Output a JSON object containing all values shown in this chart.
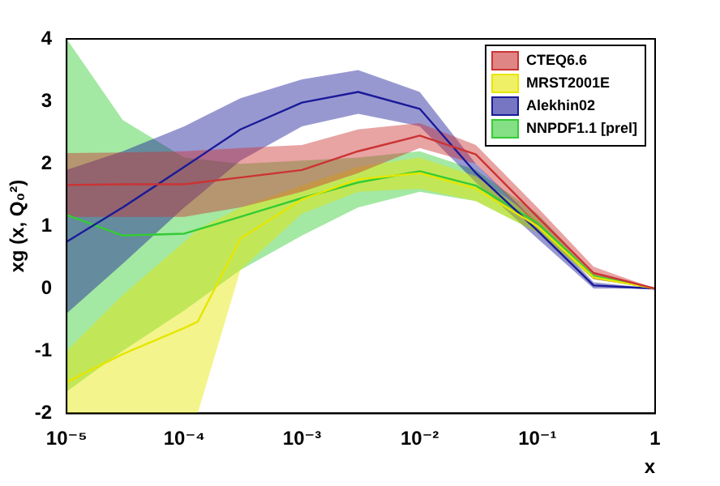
{
  "chart_data": {
    "type": "line",
    "xlabel": "x",
    "ylabel": "xg (x, Q₀²)",
    "log": "x",
    "xlim": [
      1e-05,
      1
    ],
    "ylim": [
      -2,
      4
    ],
    "xticks": [
      {
        "value": 1e-05,
        "label": "10⁻⁵"
      },
      {
        "value": 0.0001,
        "label": "10⁻⁴"
      },
      {
        "value": 0.001,
        "label": "10⁻³"
      },
      {
        "value": 0.01,
        "label": "10⁻²"
      },
      {
        "value": 0.1,
        "label": "10⁻¹"
      },
      1
    ],
    "yticks": [
      -2,
      -1,
      0,
      1,
      2,
      3,
      4
    ],
    "grid": false,
    "legend": "top right",
    "x": [
      1e-05,
      3e-05,
      0.0001,
      0.0003,
      0.001,
      0.003,
      0.01,
      0.03,
      0.1,
      0.3,
      1
    ],
    "series": [
      {
        "name": "CTEQ6.6",
        "color": "#cc3333",
        "values": [
          1.66,
          1.67,
          1.67,
          1.78,
          1.9,
          2.2,
          2.45,
          2.15,
          1.15,
          0.25,
          0
        ],
        "lower": [
          1.15,
          1.15,
          1.15,
          1.3,
          1.55,
          1.85,
          2.25,
          2.0,
          1.0,
          0.15,
          0
        ],
        "upper": [
          2.17,
          2.18,
          2.2,
          2.25,
          2.3,
          2.55,
          2.65,
          2.3,
          1.3,
          0.35,
          0
        ]
      },
      {
        "name": "MRST2001E",
        "color": "#e6e600",
        "x": [
          1e-05,
          3e-05,
          0.0001,
          0.00013,
          0.0003,
          0.001,
          0.003,
          0.01,
          0.03,
          0.1,
          0.3,
          1
        ],
        "values": [
          -1.5,
          -1.05,
          -0.63,
          -0.53,
          0.8,
          1.43,
          1.75,
          1.85,
          1.6,
          1.0,
          0.18,
          0
        ],
        "lower": [
          -2,
          -2,
          -2,
          -2,
          0.3,
          1.2,
          1.55,
          1.6,
          1.4,
          0.9,
          0.15,
          0
        ],
        "upper": [
          -1.0,
          -0.1,
          0.75,
          0.95,
          1.3,
          1.65,
          1.95,
          2.1,
          1.8,
          1.1,
          0.2,
          0
        ]
      },
      {
        "name": "Alekhin02",
        "color": "#1a1a99",
        "values": [
          0.75,
          1.3,
          1.95,
          2.55,
          2.98,
          3.15,
          2.88,
          1.85,
          0.93,
          0.05,
          0
        ],
        "lower": [
          -0.4,
          0.4,
          1.3,
          2.05,
          2.6,
          2.8,
          2.6,
          1.7,
          0.8,
          0.0,
          0
        ],
        "upper": [
          1.9,
          2.2,
          2.6,
          3.05,
          3.35,
          3.5,
          3.15,
          2.0,
          1.05,
          0.1,
          0
        ]
      },
      {
        "name": "NNPDF1.1 [prel]",
        "color": "#33cc33",
        "values": [
          1.18,
          0.85,
          0.88,
          1.15,
          1.45,
          1.7,
          1.88,
          1.65,
          1.05,
          0.2,
          0
        ],
        "lower": [
          -1.65,
          -1.0,
          -0.35,
          0.3,
          0.85,
          1.3,
          1.55,
          1.4,
          0.9,
          0.15,
          0
        ],
        "upper": [
          4.0,
          2.7,
          2.1,
          2.0,
          2.05,
          2.1,
          2.2,
          1.9,
          1.2,
          0.25,
          0
        ]
      }
    ]
  }
}
